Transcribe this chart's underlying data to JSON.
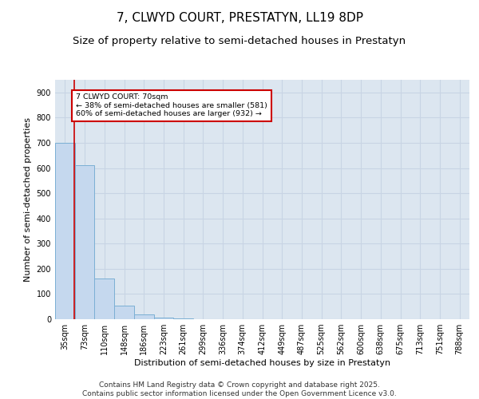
{
  "title_line1": "7, CLWYD COURT, PRESTATYN, LL19 8DP",
  "title_line2": "Size of property relative to semi-detached houses in Prestatyn",
  "xlabel": "Distribution of semi-detached houses by size in Prestatyn",
  "ylabel": "Number of semi-detached properties",
  "categories": [
    "35sqm",
    "73sqm",
    "110sqm",
    "148sqm",
    "186sqm",
    "223sqm",
    "261sqm",
    "299sqm",
    "336sqm",
    "374sqm",
    "412sqm",
    "449sqm",
    "487sqm",
    "525sqm",
    "562sqm",
    "600sqm",
    "638sqm",
    "675sqm",
    "713sqm",
    "751sqm",
    "788sqm"
  ],
  "values": [
    700,
    610,
    160,
    55,
    20,
    5,
    2,
    1,
    0,
    0,
    0,
    0,
    0,
    0,
    0,
    0,
    0,
    0,
    0,
    0,
    0
  ],
  "bar_color": "#c5d8ee",
  "bar_edge_color": "#7bafd4",
  "grid_color": "#c8d4e4",
  "background_color": "#dce6f0",
  "annotation_text": "7 CLWYD COURT: 70sqm\n← 38% of semi-detached houses are smaller (581)\n60% of semi-detached houses are larger (932) →",
  "annotation_box_color": "#ffffff",
  "annotation_box_edge": "#cc0000",
  "ylim": [
    0,
    950
  ],
  "yticks": [
    0,
    100,
    200,
    300,
    400,
    500,
    600,
    700,
    800,
    900
  ],
  "footer": "Contains HM Land Registry data © Crown copyright and database right 2025.\nContains public sector information licensed under the Open Government Licence v3.0.",
  "title_fontsize": 11,
  "subtitle_fontsize": 9.5,
  "axis_label_fontsize": 8,
  "tick_fontsize": 7,
  "footer_fontsize": 6.5
}
